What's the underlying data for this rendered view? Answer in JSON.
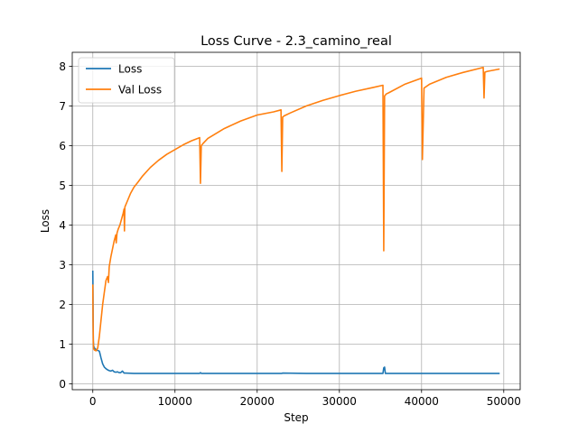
{
  "chart_data": {
    "type": "line",
    "title": "Loss Curve - 2.3_camino_real",
    "xlabel": "Step",
    "ylabel": "Loss",
    "xlim": [
      -2500,
      52000
    ],
    "ylim": [
      -0.15,
      8.35
    ],
    "xticks": [
      0,
      10000,
      20000,
      30000,
      40000,
      50000
    ],
    "yticks": [
      0,
      1,
      2,
      3,
      4,
      5,
      6,
      7,
      8
    ],
    "grid": true,
    "legend_position": "top-left",
    "series": [
      {
        "name": "Loss",
        "color": "#1f77b4",
        "x": [
          0,
          20,
          40,
          60,
          100,
          200,
          400,
          600,
          800,
          1000,
          1200,
          1400,
          1600,
          1800,
          2000,
          2200,
          2400,
          2600,
          2800,
          3000,
          3200,
          3400,
          3600,
          3800,
          4000,
          5000,
          8000,
          12000,
          13000,
          13100,
          13200,
          16000,
          20000,
          23000,
          23100,
          26000,
          30000,
          35300,
          35400,
          35500,
          35600,
          36000,
          40000,
          45000,
          47600,
          48000,
          49500
        ],
        "y": [
          2.85,
          2.4,
          1.6,
          1.1,
          0.95,
          0.9,
          0.86,
          0.84,
          0.82,
          0.65,
          0.5,
          0.42,
          0.38,
          0.35,
          0.33,
          0.32,
          0.34,
          0.3,
          0.29,
          0.3,
          0.28,
          0.28,
          0.32,
          0.27,
          0.27,
          0.26,
          0.26,
          0.26,
          0.26,
          0.28,
          0.26,
          0.26,
          0.26,
          0.26,
          0.27,
          0.26,
          0.26,
          0.26,
          0.4,
          0.42,
          0.26,
          0.26,
          0.26,
          0.26,
          0.26,
          0.26,
          0.26
        ]
      },
      {
        "name": "Val Loss",
        "color": "#ff7f0e",
        "x": [
          0,
          30,
          60,
          100,
          200,
          400,
          600,
          800,
          1000,
          1200,
          1400,
          1600,
          1800,
          1900,
          2000,
          2200,
          2400,
          2600,
          2800,
          2850,
          2950,
          3100,
          3300,
          3500,
          3700,
          3800,
          3850,
          3900,
          4200,
          4600,
          5000,
          5500,
          6000,
          7000,
          8000,
          9000,
          10000,
          11000,
          12000,
          13000,
          13100,
          13200,
          13400,
          14000,
          16000,
          18000,
          20000,
          22000,
          22900,
          23000,
          23100,
          23300,
          24000,
          26000,
          28000,
          30000,
          32000,
          34000,
          35300,
          35400,
          35500,
          35700,
          36000,
          38000,
          40000,
          40100,
          40300,
          41000,
          43000,
          45000,
          47500,
          47600,
          47700,
          48000,
          49500
        ],
        "y": [
          2.5,
          1.6,
          1.05,
          0.88,
          0.85,
          0.83,
          0.9,
          1.2,
          1.6,
          2.0,
          2.3,
          2.6,
          2.7,
          2.55,
          2.95,
          3.2,
          3.4,
          3.6,
          3.75,
          3.55,
          3.8,
          3.9,
          4.0,
          4.15,
          4.3,
          4.4,
          3.85,
          4.45,
          4.6,
          4.8,
          4.95,
          5.08,
          5.22,
          5.45,
          5.63,
          5.78,
          5.9,
          6.02,
          6.12,
          6.2,
          5.05,
          6.0,
          6.05,
          6.18,
          6.43,
          6.62,
          6.77,
          6.85,
          6.9,
          5.35,
          6.72,
          6.75,
          6.82,
          7.0,
          7.14,
          7.26,
          7.37,
          7.46,
          7.52,
          3.35,
          7.25,
          7.3,
          7.33,
          7.55,
          7.7,
          5.65,
          7.45,
          7.55,
          7.72,
          7.84,
          7.97,
          7.2,
          7.85,
          7.87,
          7.93
        ]
      }
    ]
  }
}
